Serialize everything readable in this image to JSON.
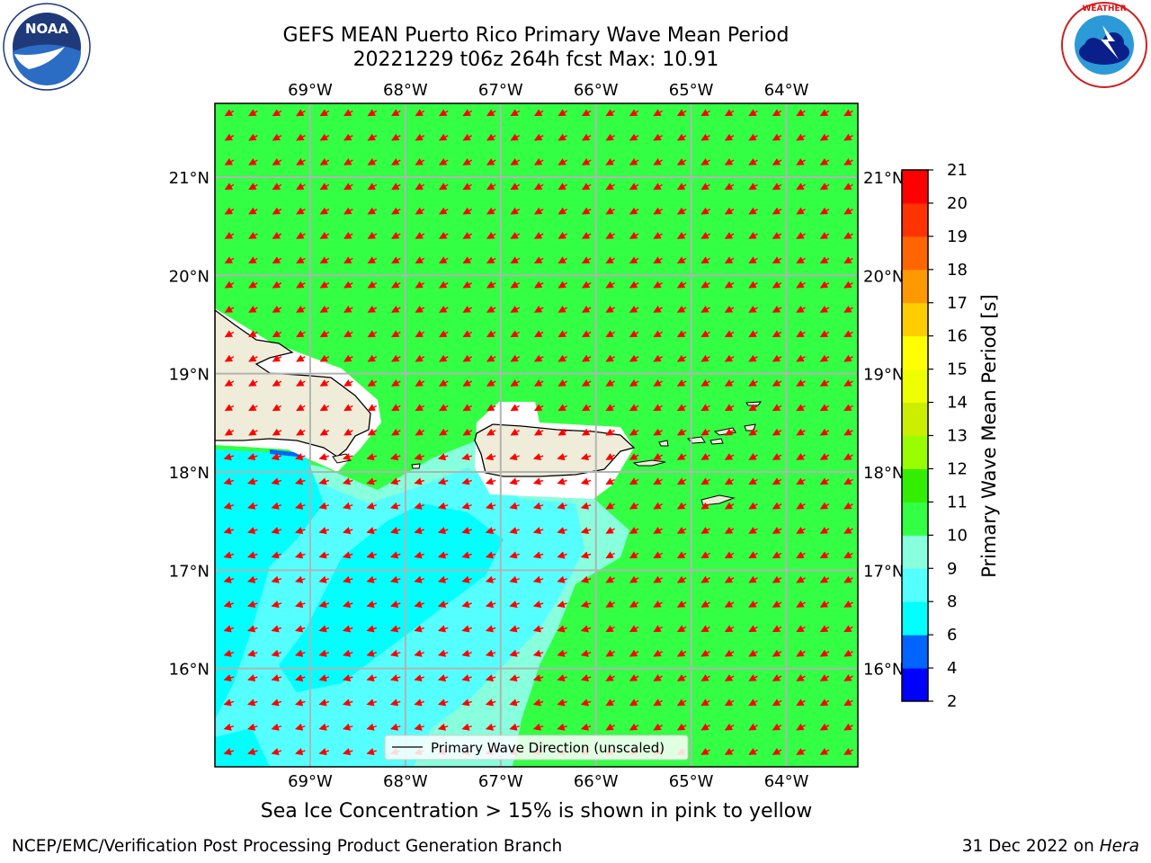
{
  "title_line1": "GEFS MEAN Puerto Rico Primary Wave Mean Period",
  "title_line2": "20221229 t06z 264h fcst   Max: 10.91",
  "caption": "Sea Ice Concentration > 15% is shown in pink to yellow",
  "footer_left": "NCEP/EMC/Verification Post Processing Product Generation Branch",
  "footer_right_prefix": "31 Dec 2022 on ",
  "footer_right_host": "Hera",
  "legend_label": "Primary Wave Direction (unscaled)",
  "colorbar_label": "Primary Wave Mean Period [s]",
  "logos": {
    "left": "NOAA",
    "right": "NATIONAL WEATHER SERVICE"
  },
  "colors": {
    "land": "#efedd9",
    "arrow": "#ff0000",
    "grid": "#b3b3b3",
    "coastline": "#000000"
  },
  "map": {
    "lon_range": [
      -70.0,
      -63.25
    ],
    "lat_range": [
      15.0,
      21.75
    ],
    "lon_ticks": [
      "69°W",
      "68°W",
      "67°W",
      "66°W",
      "65°W",
      "64°W"
    ],
    "lat_ticks": [
      "16°N",
      "17°N",
      "18°N",
      "19°N",
      "20°N",
      "21°N"
    ],
    "dominant_period_class": "10-11",
    "arrow_direction": "toward southwest"
  },
  "colorbar": {
    "bounds": [
      2,
      4,
      6,
      8,
      9,
      10,
      11,
      12,
      13,
      14,
      15,
      16,
      17,
      18,
      19,
      20,
      21
    ],
    "colors": [
      "#0000ff",
      "#0064ff",
      "#00ffff",
      "#55ffff",
      "#88ffdd",
      "#33ff44",
      "#33ee00",
      "#99ff00",
      "#ccee00",
      "#eeff00",
      "#ffff00",
      "#ffcc00",
      "#ff9900",
      "#ff6600",
      "#ff3300",
      "#ff0000"
    ],
    "tick_labels": [
      "2",
      "4",
      "6",
      "8",
      "9",
      "10",
      "11",
      "12",
      "13",
      "14",
      "15",
      "16",
      "17",
      "18",
      "19",
      "20",
      "21"
    ]
  }
}
